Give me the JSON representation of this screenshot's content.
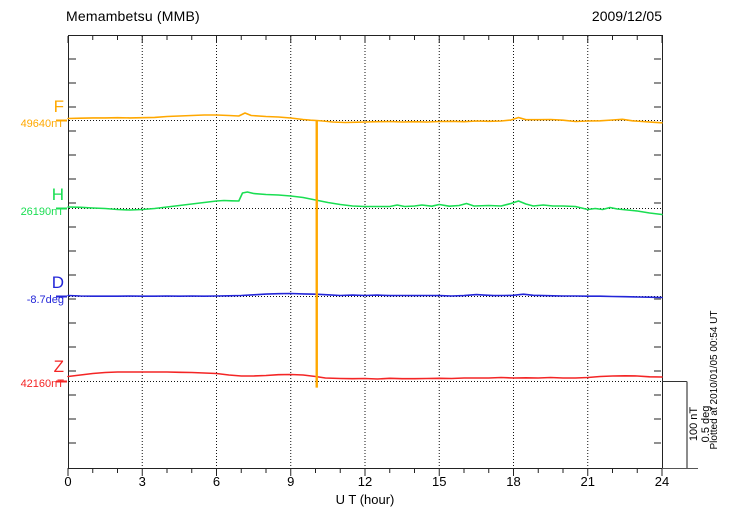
{
  "header": {
    "title": "Memambetsu (MMB)",
    "date": "2009/12/05"
  },
  "footer": {
    "plotted_at": "Plotted at 2010/01/05 00:54 UT"
  },
  "chart_data": {
    "type": "line",
    "title": "Memambetsu (MMB)",
    "date": "2009/12/05",
    "xlabel": "U T (hour)",
    "xlim": [
      0,
      24
    ],
    "x_ticks": [
      0,
      3,
      6,
      9,
      12,
      15,
      18,
      21,
      24
    ],
    "x_gridlines_hours": [
      3,
      6,
      9,
      12,
      15,
      18,
      21
    ],
    "grid": "dotted",
    "scale_bar": {
      "nt_label": "100 nT",
      "deg_label": "0.5 deg",
      "nT_per_bar": 100,
      "deg_per_bar": 0.5
    },
    "series": [
      {
        "name": "F",
        "unit": "nT",
        "baseline_value": 49640,
        "baseline_label": "49640nT",
        "color": "#ffa800",
        "points": [
          [
            0,
            2.3
          ],
          [
            0.5,
            2.7
          ],
          [
            1,
            3
          ],
          [
            1.5,
            3
          ],
          [
            2,
            3.2
          ],
          [
            2.5,
            3
          ],
          [
            3,
            3.2
          ],
          [
            3.5,
            3.6
          ],
          [
            4,
            4.6
          ],
          [
            4.5,
            5.2
          ],
          [
            5,
            5.7
          ],
          [
            5.5,
            6.3
          ],
          [
            6,
            6.3
          ],
          [
            6.5,
            5.7
          ],
          [
            6.9,
            5.2
          ],
          [
            7.15,
            8.6
          ],
          [
            7.4,
            5.7
          ],
          [
            8,
            4.6
          ],
          [
            8.5,
            4
          ],
          [
            9,
            2.9
          ],
          [
            9.5,
            1.1
          ],
          [
            9.8,
            0.3
          ],
          [
            10.05,
            0
          ],
          [
            10.3,
            -0.6
          ],
          [
            10.7,
            -1.7
          ],
          [
            11.2,
            -2.3
          ],
          [
            11.7,
            -2
          ],
          [
            12,
            -1.7
          ],
          [
            12.5,
            -1.4
          ],
          [
            13,
            -1.1
          ],
          [
            13.5,
            -1.7
          ],
          [
            14,
            -1.4
          ],
          [
            14.5,
            -1.7
          ],
          [
            15,
            -1.1
          ],
          [
            15.5,
            -0.9
          ],
          [
            16,
            -1.4
          ],
          [
            16.5,
            -0.6
          ],
          [
            17,
            -0.9
          ],
          [
            17.5,
            -0.6
          ],
          [
            17.9,
            0.6
          ],
          [
            18.2,
            3.4
          ],
          [
            18.5,
            0.9
          ],
          [
            19,
            0.9
          ],
          [
            19.5,
            1.1
          ],
          [
            20,
            0.3
          ],
          [
            20.5,
            -1.1
          ],
          [
            21,
            -0.6
          ],
          [
            21.5,
            -0.3
          ],
          [
            22,
            0.6
          ],
          [
            22.4,
            1.4
          ],
          [
            22.8,
            -0.3
          ],
          [
            23.2,
            -1.1
          ],
          [
            23.6,
            -2
          ],
          [
            24,
            -2.6
          ]
        ]
      },
      {
        "name": "H",
        "unit": "nT",
        "baseline_value": 26190,
        "baseline_label": "26190nT",
        "color": "#1ade52",
        "points": [
          [
            0,
            1.7
          ],
          [
            0.5,
            1.4
          ],
          [
            1,
            0.6
          ],
          [
            1.5,
            0
          ],
          [
            2,
            -1.1
          ],
          [
            2.5,
            -1.7
          ],
          [
            3,
            -1.1
          ],
          [
            3.5,
            0
          ],
          [
            4,
            1.7
          ],
          [
            4.5,
            3.4
          ],
          [
            5,
            5.2
          ],
          [
            5.5,
            6.9
          ],
          [
            6,
            8.6
          ],
          [
            6.3,
            9.2
          ],
          [
            6.6,
            8.9
          ],
          [
            6.9,
            8.6
          ],
          [
            7.05,
            17.8
          ],
          [
            7.25,
            19
          ],
          [
            7.5,
            17.2
          ],
          [
            8,
            16.1
          ],
          [
            8.5,
            15.5
          ],
          [
            9,
            14.4
          ],
          [
            9.5,
            12.6
          ],
          [
            10,
            9.8
          ],
          [
            10.5,
            6.9
          ],
          [
            11,
            4.6
          ],
          [
            11.5,
            2.9
          ],
          [
            12,
            2.3
          ],
          [
            12.5,
            2.3
          ],
          [
            13,
            2.3
          ],
          [
            13.3,
            4
          ],
          [
            13.6,
            2.3
          ],
          [
            14,
            2.9
          ],
          [
            14.3,
            4
          ],
          [
            14.7,
            2.6
          ],
          [
            15,
            4.6
          ],
          [
            15.4,
            2.6
          ],
          [
            15.8,
            3.4
          ],
          [
            16.1,
            5.7
          ],
          [
            16.4,
            2.9
          ],
          [
            17,
            3.4
          ],
          [
            17.5,
            2.9
          ],
          [
            17.9,
            5.7
          ],
          [
            18.2,
            8.6
          ],
          [
            18.5,
            5.2
          ],
          [
            18.8,
            2.9
          ],
          [
            19.2,
            4
          ],
          [
            19.6,
            2.9
          ],
          [
            20,
            2.9
          ],
          [
            20.5,
            2.3
          ],
          [
            21,
            -1.1
          ],
          [
            21.3,
            0
          ],
          [
            21.6,
            -1.1
          ],
          [
            21.9,
            1.1
          ],
          [
            22.2,
            -0.6
          ],
          [
            22.6,
            -1.7
          ],
          [
            23,
            -2.9
          ],
          [
            23.5,
            -5.2
          ],
          [
            24,
            -6.9
          ]
        ]
      },
      {
        "name": "D",
        "unit": "deg",
        "baseline_value": -8.7,
        "baseline_label": "-8.7deg",
        "color": "#2326d8",
        "points": [
          [
            0,
            0.006
          ],
          [
            0.5,
            0.003
          ],
          [
            1,
            0.002
          ],
          [
            1.5,
            0.002
          ],
          [
            2,
            0.002
          ],
          [
            2.5,
            0.003
          ],
          [
            3,
            0.002
          ],
          [
            3.5,
            0.002
          ],
          [
            4,
            0.003
          ],
          [
            4.5,
            0.002
          ],
          [
            5,
            0.003
          ],
          [
            5.5,
            0.002
          ],
          [
            6,
            0.003
          ],
          [
            6.5,
            0.004
          ],
          [
            7,
            0.006
          ],
          [
            7.5,
            0.01
          ],
          [
            8,
            0.014
          ],
          [
            8.5,
            0.016
          ],
          [
            9,
            0.017
          ],
          [
            9.5,
            0.015
          ],
          [
            10,
            0.013
          ],
          [
            10.5,
            0.01
          ],
          [
            11,
            0.006
          ],
          [
            11.5,
            0.008
          ],
          [
            12,
            0.006
          ],
          [
            12.5,
            0.008
          ],
          [
            13,
            0.005
          ],
          [
            13.5,
            0.006
          ],
          [
            14,
            0.005
          ],
          [
            14.5,
            0.006
          ],
          [
            15,
            0.005
          ],
          [
            15.5,
            0.003
          ],
          [
            16,
            0.005
          ],
          [
            16.5,
            0.011
          ],
          [
            16.8,
            0.008
          ],
          [
            17.2,
            0.005
          ],
          [
            17.6,
            0.006
          ],
          [
            18,
            0.007
          ],
          [
            18.4,
            0.013
          ],
          [
            18.8,
            0.007
          ],
          [
            19.2,
            0.005
          ],
          [
            19.6,
            0.004
          ],
          [
            20,
            0.003
          ],
          [
            20.5,
            0.003
          ],
          [
            21,
            0.002
          ],
          [
            21.5,
            0.002
          ],
          [
            22,
            0
          ],
          [
            22.5,
            -0.001
          ],
          [
            23,
            -0.003
          ],
          [
            23.5,
            -0.004
          ],
          [
            24,
            -0.006
          ]
        ]
      },
      {
        "name": "Z",
        "unit": "nT",
        "baseline_value": 42160,
        "baseline_label": "42160nT",
        "color": "#f42525",
        "points": [
          [
            0,
            5.7
          ],
          [
            0.5,
            7.5
          ],
          [
            1,
            9.2
          ],
          [
            1.5,
            10.3
          ],
          [
            2,
            10.9
          ],
          [
            2.5,
            10.9
          ],
          [
            3,
            10.9
          ],
          [
            3.5,
            10.9
          ],
          [
            4,
            10.9
          ],
          [
            4.5,
            10.6
          ],
          [
            5,
            10.3
          ],
          [
            5.5,
            9.8
          ],
          [
            6,
            9.2
          ],
          [
            6.5,
            7.5
          ],
          [
            7,
            6.3
          ],
          [
            7.5,
            6.3
          ],
          [
            8,
            6.9
          ],
          [
            8.5,
            7.8
          ],
          [
            9,
            8
          ],
          [
            9.5,
            7.5
          ],
          [
            10,
            5.7
          ],
          [
            10.4,
            4
          ],
          [
            11,
            3.4
          ],
          [
            11.5,
            3.2
          ],
          [
            12,
            3.4
          ],
          [
            12.5,
            2.9
          ],
          [
            13,
            3.7
          ],
          [
            13.5,
            3.2
          ],
          [
            14,
            3.2
          ],
          [
            14.5,
            3.4
          ],
          [
            15,
            3.7
          ],
          [
            15.5,
            3.4
          ],
          [
            16,
            4
          ],
          [
            16.5,
            4
          ],
          [
            17,
            4
          ],
          [
            17.5,
            4.6
          ],
          [
            18,
            4
          ],
          [
            18.5,
            4.3
          ],
          [
            19,
            4
          ],
          [
            19.5,
            4.6
          ],
          [
            20,
            4
          ],
          [
            20.5,
            4
          ],
          [
            21,
            4.6
          ],
          [
            21.5,
            5.7
          ],
          [
            22,
            6.3
          ],
          [
            22.5,
            6.6
          ],
          [
            23,
            6.3
          ],
          [
            23.5,
            5.4
          ],
          [
            24,
            5.2
          ]
        ]
      }
    ],
    "spike": {
      "component": "F",
      "hour": 10.05,
      "top_dev": 0,
      "bottom_dev": -307
    }
  }
}
